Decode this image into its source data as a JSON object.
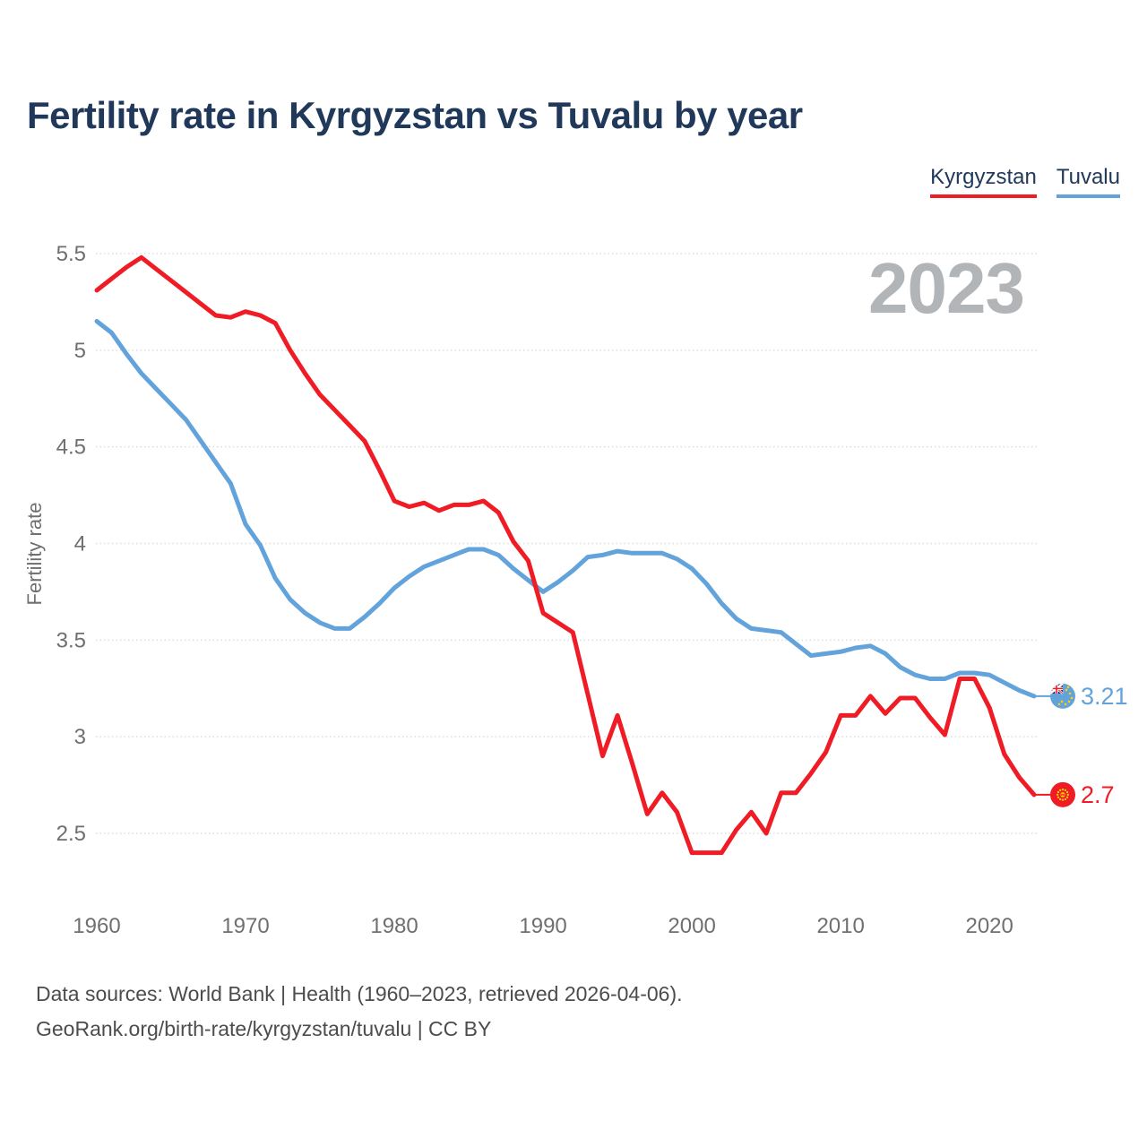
{
  "page": {
    "title": "Fertility rate in Kyrgyzstan vs Tuvalu by year",
    "watermark_year": "2023",
    "footer_line1": "Data sources: World Bank | Health (1960–2023, retrieved 2026-04-06).",
    "footer_line2": "GeoRank.org/birth-rate/kyrgyzstan/tuvalu | CC BY"
  },
  "colors": {
    "kyrgyzstan": "#ef1c25",
    "tuvalu": "#63a3db",
    "title_navy": "#20395a",
    "axis_gray": "#6f6f6f",
    "watermark_gray": "#b2b5b8",
    "gridline": "#dedede",
    "flag_yellow": "#ffd100",
    "jack_navy": "#012169"
  },
  "chart_data": {
    "type": "line",
    "title": "Fertility rate in Kyrgyzstan vs Tuvalu by year",
    "xlabel": "",
    "ylabel": "Fertility rate",
    "grid": "horizontal-dotted",
    "legend_position": "top-right",
    "ylim": [
      2.3,
      5.6
    ],
    "xlim": [
      1960,
      2023
    ],
    "y_ticks": [
      "5.5",
      "5",
      "4.5",
      "4",
      "3.5",
      "3",
      "2.5"
    ],
    "y_tick_values": [
      5.5,
      5,
      4.5,
      4,
      3.5,
      3,
      2.5
    ],
    "x_ticks": [
      1960,
      1970,
      1980,
      1990,
      2000,
      2010,
      2020
    ],
    "x": [
      1960,
      1961,
      1962,
      1963,
      1964,
      1965,
      1966,
      1967,
      1968,
      1969,
      1970,
      1971,
      1972,
      1973,
      1974,
      1975,
      1976,
      1977,
      1978,
      1979,
      1980,
      1981,
      1982,
      1983,
      1984,
      1985,
      1986,
      1987,
      1988,
      1989,
      1990,
      1991,
      1992,
      1993,
      1994,
      1995,
      1996,
      1997,
      1998,
      1999,
      2000,
      2001,
      2002,
      2003,
      2004,
      2005,
      2006,
      2007,
      2008,
      2009,
      2010,
      2011,
      2012,
      2013,
      2014,
      2015,
      2016,
      2017,
      2018,
      2019,
      2020,
      2021,
      2022,
      2023
    ],
    "series": [
      {
        "name": "Kyrgyzstan",
        "color": "#ef1c25",
        "end_label": "2.7",
        "flag": "kyrgyzstan",
        "values": [
          5.31,
          5.37,
          5.43,
          5.48,
          5.42,
          5.36,
          5.3,
          5.24,
          5.18,
          5.17,
          5.2,
          5.18,
          5.14,
          5.0,
          4.88,
          4.77,
          4.69,
          4.61,
          4.53,
          4.38,
          4.22,
          4.19,
          4.21,
          4.17,
          4.2,
          4.2,
          4.22,
          4.16,
          4.01,
          3.91,
          3.64,
          3.59,
          3.54,
          3.22,
          2.9,
          3.11,
          2.86,
          2.6,
          2.71,
          2.61,
          2.4,
          2.4,
          2.4,
          2.52,
          2.61,
          2.5,
          2.71,
          2.71,
          2.81,
          2.92,
          3.11,
          3.11,
          3.21,
          3.12,
          3.2,
          3.2,
          3.1,
          3.01,
          3.3,
          3.3,
          3.15,
          2.91,
          2.79,
          2.7
        ]
      },
      {
        "name": "Tuvalu",
        "color": "#63a3db",
        "end_label": "3.21",
        "flag": "tuvalu",
        "values": [
          5.15,
          5.09,
          4.98,
          4.88,
          4.8,
          4.72,
          4.64,
          4.53,
          4.42,
          4.31,
          4.1,
          3.99,
          3.82,
          3.71,
          3.64,
          3.59,
          3.56,
          3.56,
          3.62,
          3.69,
          3.77,
          3.83,
          3.88,
          3.91,
          3.94,
          3.97,
          3.97,
          3.94,
          3.87,
          3.81,
          3.75,
          3.8,
          3.86,
          3.93,
          3.94,
          3.96,
          3.95,
          3.95,
          3.95,
          3.92,
          3.87,
          3.79,
          3.69,
          3.61,
          3.56,
          3.55,
          3.54,
          3.48,
          3.42,
          3.43,
          3.44,
          3.46,
          3.47,
          3.43,
          3.36,
          3.32,
          3.3,
          3.3,
          3.33,
          3.33,
          3.32,
          3.28,
          3.24,
          3.21
        ]
      }
    ]
  }
}
